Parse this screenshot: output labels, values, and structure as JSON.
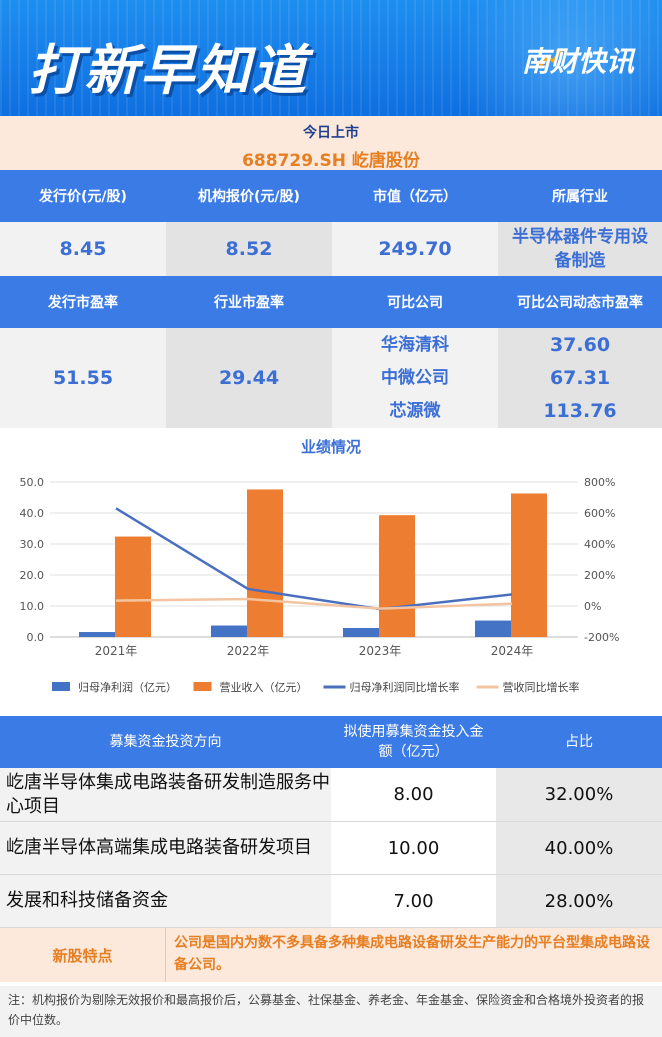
{
  "banner": {
    "title": "打新早知道",
    "brand": "南财快讯"
  },
  "today": {
    "label": "今日上市",
    "stock": "688729.SH  屹唐股份"
  },
  "table1": {
    "headers": [
      "发行价(元/股)",
      "机构报价(元/股)",
      "市值（亿元）",
      "所属行业"
    ],
    "values": [
      "8.45",
      "8.52",
      "249.70",
      "半导体器件专用设备制造"
    ]
  },
  "table2": {
    "headers": [
      "发行市盈率",
      "行业市盈率",
      "可比公司",
      "可比公司动态市盈率"
    ],
    "issue_pe": "51.55",
    "industry_pe": "29.44",
    "companies": [
      "华海清科",
      "中微公司",
      "芯源微"
    ],
    "company_pe": [
      "37.60",
      "67.31",
      "113.76"
    ]
  },
  "chart_data": {
    "type": "bar",
    "title": "业绩情况",
    "categories": [
      "2021年",
      "2022年",
      "2023年",
      "2024年"
    ],
    "ylim": [
      0,
      50
    ],
    "yticks": [
      "0.0",
      "10.0",
      "20.0",
      "30.0",
      "40.0",
      "50.0"
    ],
    "y2lim": [
      -200,
      800
    ],
    "y2ticks": [
      "-200%",
      "0%",
      "200%",
      "400%",
      "600%",
      "800%"
    ],
    "series": [
      {
        "name": "归母净利润（亿元）",
        "kind": "bar",
        "axis": "left",
        "color": "#4472c4",
        "values": [
          1.6,
          3.7,
          2.9,
          5.3
        ]
      },
      {
        "name": "营业收入（亿元）",
        "kind": "bar",
        "axis": "left",
        "color": "#ed7d31",
        "values": [
          32.4,
          47.6,
          39.3,
          46.3
        ]
      },
      {
        "name": "归母净利润同比增长率",
        "kind": "line",
        "axis": "right",
        "color": "#4a6fbf",
        "values": [
          630,
          110,
          -20,
          75
        ]
      },
      {
        "name": "营收同比增长率",
        "kind": "line",
        "axis": "right",
        "color": "#f4c4a0",
        "values": [
          35,
          45,
          -17,
          15
        ]
      }
    ]
  },
  "funds": {
    "headers": [
      "募集资金投资方向",
      "拟使用募集资金投入金额（亿元）",
      "占比"
    ],
    "rows": [
      {
        "name": "屹唐半导体集成电路装备研发制造服务中心项目",
        "amount": "8.00",
        "ratio": "32.00%"
      },
      {
        "name": "屹唐半导体高端集成电路装备研发项目",
        "amount": "10.00",
        "ratio": "40.00%"
      },
      {
        "name": "发展和科技储备资金",
        "amount": "7.00",
        "ratio": "28.00%"
      }
    ]
  },
  "feature": {
    "label": "新股特点",
    "text": "公司是国内为数不多具备多种集成电路设备研发生产能力的平台型集成电路设备公司。"
  },
  "note": "注：机构报价为剔除无效报价和最高报价后，公募基金、社保基金、养老金、年金基金、保险资金和合格境外投资者的报价中位数。"
}
